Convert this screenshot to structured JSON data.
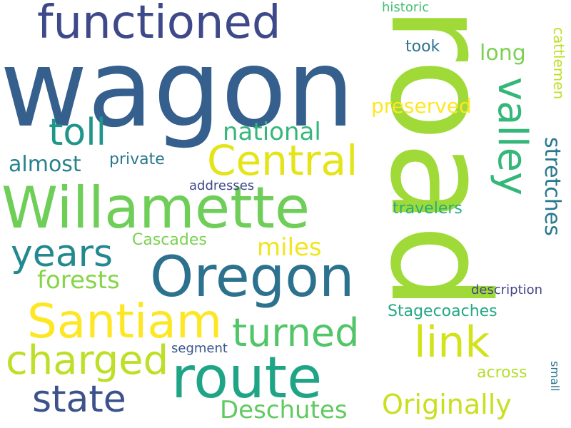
{
  "cloud": {
    "words": {
      "wagon": {
        "text": "wagon",
        "color": "#355f8d"
      },
      "road": {
        "text": "road",
        "color": "#a0da39"
      },
      "functioned": {
        "text": "functioned",
        "color": "#3e4989"
      },
      "willamette": {
        "text": "Willamette",
        "color": "#6ece58"
      },
      "oregon": {
        "text": "Oregon",
        "color": "#2c728e"
      },
      "route": {
        "text": "route",
        "color": "#20a486"
      },
      "santiam": {
        "text": "Santiam",
        "color": "#fde725"
      },
      "central": {
        "text": "Central",
        "color": "#e5e419"
      },
      "valley": {
        "text": "valley",
        "color": "#35b779"
      },
      "years": {
        "text": "years",
        "color": "#23898e"
      },
      "charged": {
        "text": "charged",
        "color": "#bddf26"
      },
      "state": {
        "text": "state",
        "color": "#3b528b"
      },
      "turned": {
        "text": "turned",
        "color": "#52c569"
      },
      "link": {
        "text": "link",
        "color": "#d2e21b"
      },
      "toll": {
        "text": "toll",
        "color": "#1f958b"
      },
      "national": {
        "text": "national",
        "color": "#35b779"
      },
      "long": {
        "text": "long",
        "color": "#7ad151"
      },
      "preserved": {
        "text": "preserved",
        "color": "#fde725"
      },
      "almost": {
        "text": "almost",
        "color": "#26828e"
      },
      "private": {
        "text": "private",
        "color": "#2a788e"
      },
      "miles": {
        "text": "miles",
        "color": "#f1e51d"
      },
      "forests": {
        "text": "forests",
        "color": "#86d549"
      },
      "stretches": {
        "text": "stretches",
        "color": "#2a788e"
      },
      "cattlemen": {
        "text": "cattlemen",
        "color": "#bddf26"
      },
      "historic": {
        "text": "historic",
        "color": "#44bf70"
      },
      "took": {
        "text": "took",
        "color": "#2c728e"
      },
      "addresses": {
        "text": "addresses",
        "color": "#3e4989"
      },
      "travelers": {
        "text": "travelers",
        "color": "#25ac82"
      },
      "cascades": {
        "text": "Cascades",
        "color": "#7ad151"
      },
      "stagecoaches": {
        "text": "Stagecoaches",
        "color": "#22a884"
      },
      "description": {
        "text": "description",
        "color": "#414487"
      },
      "segment": {
        "text": "segment",
        "color": "#39568c"
      },
      "across": {
        "text": "across",
        "color": "#b5de2b"
      },
      "small": {
        "text": "small",
        "color": "#2a788e"
      },
      "deschutes": {
        "text": "Deschutes",
        "color": "#60ca60"
      },
      "originally": {
        "text": "Originally",
        "color": "#c8e020"
      }
    }
  }
}
